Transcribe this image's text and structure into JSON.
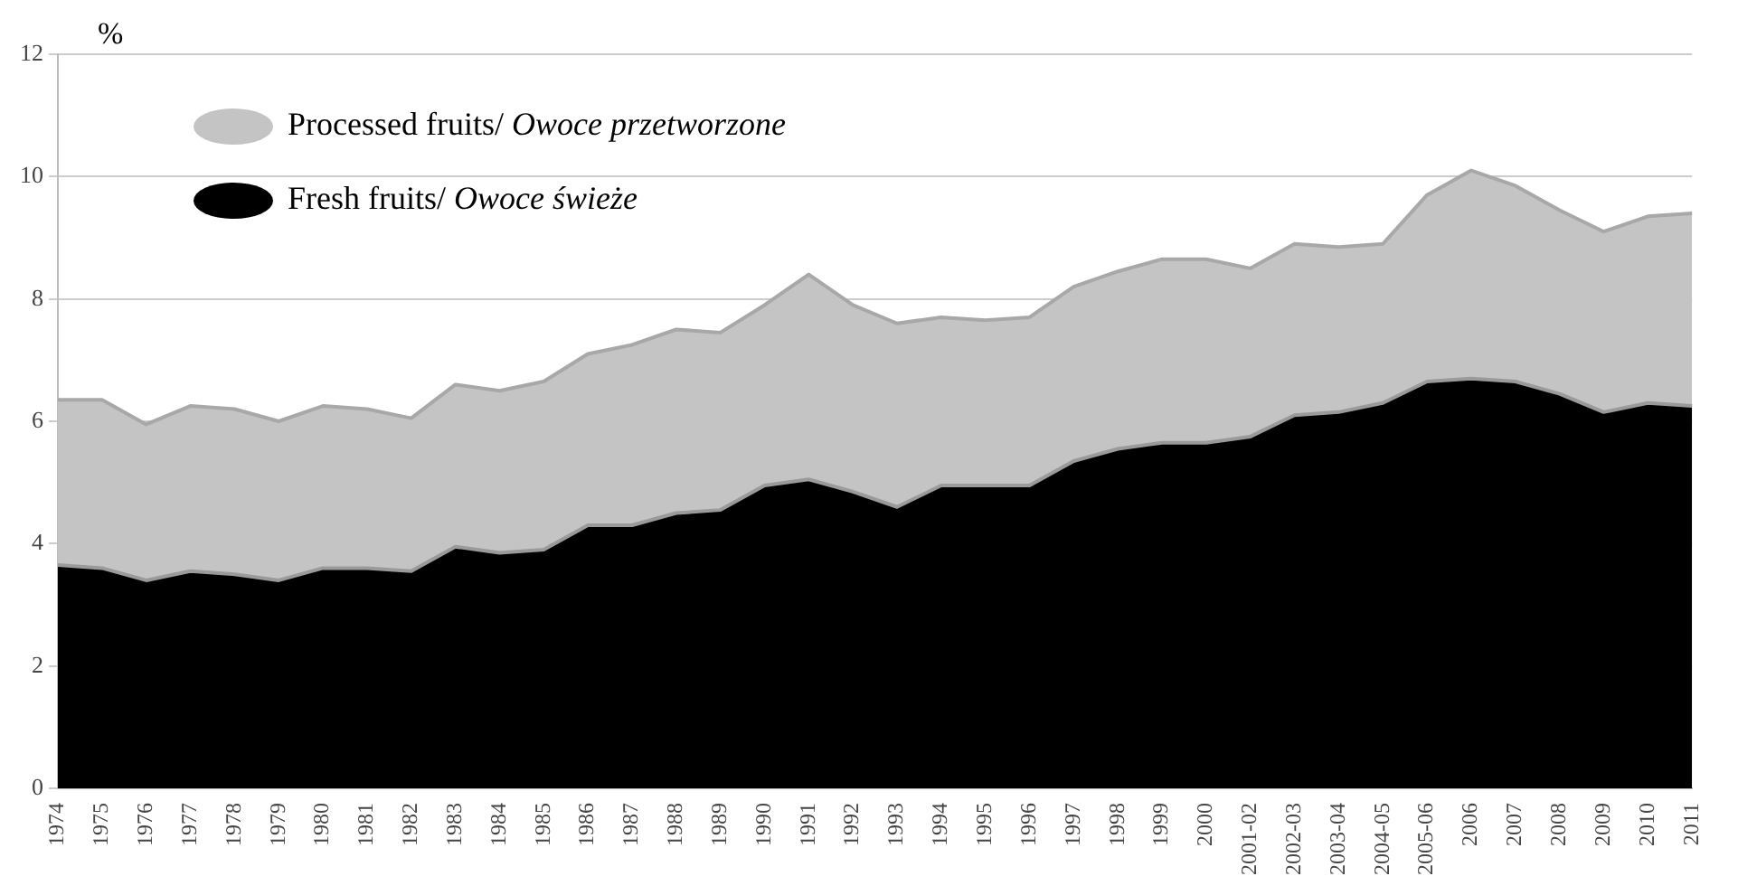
{
  "chart_data": {
    "type": "area",
    "ylabel": "%",
    "stacked": true,
    "categories": [
      "1974",
      "1975",
      "1976",
      "1977",
      "1978",
      "1979",
      "1980",
      "1981",
      "1982",
      "1983",
      "1984",
      "1985",
      "1986",
      "1987",
      "1988",
      "1989",
      "1990",
      "1991",
      "1992",
      "1993",
      "1994",
      "1995",
      "1996",
      "1997",
      "1998",
      "1999",
      "2000",
      "2001-02",
      "2002-03",
      "2003-04",
      "2004-05",
      "2005-06",
      "2006",
      "2007",
      "2008",
      "2009",
      "2010",
      "2011"
    ],
    "series": [
      {
        "name": "Fresh fruits/ Owoce świeże",
        "color": "#000000",
        "values": [
          3.65,
          3.6,
          3.4,
          3.55,
          3.5,
          3.4,
          3.6,
          3.6,
          3.55,
          3.95,
          3.85,
          3.9,
          4.3,
          4.3,
          4.5,
          4.55,
          4.95,
          5.05,
          4.85,
          4.6,
          4.95,
          4.95,
          4.95,
          5.35,
          5.55,
          5.65,
          5.65,
          5.75,
          6.1,
          6.15,
          6.3,
          6.65,
          6.7,
          6.65,
          6.45,
          6.15,
          6.3,
          6.25
        ]
      },
      {
        "name": "Processed fruits/ Owoce przetworzone",
        "color": "#c4c4c4",
        "values": [
          2.7,
          2.75,
          2.55,
          2.7,
          2.7,
          2.6,
          2.65,
          2.6,
          2.5,
          2.65,
          2.65,
          2.75,
          2.8,
          2.95,
          3.0,
          2.9,
          2.95,
          3.35,
          3.05,
          3.0,
          2.75,
          2.7,
          2.75,
          2.85,
          2.9,
          3.0,
          3.0,
          2.75,
          2.8,
          2.7,
          2.6,
          3.05,
          3.4,
          3.2,
          3.0,
          2.95,
          3.05,
          3.15
        ]
      }
    ],
    "ylim": [
      0,
      12
    ],
    "yticks": [
      0,
      2,
      4,
      6,
      8,
      10,
      12
    ],
    "grid": "y",
    "legend": "top left"
  }
}
